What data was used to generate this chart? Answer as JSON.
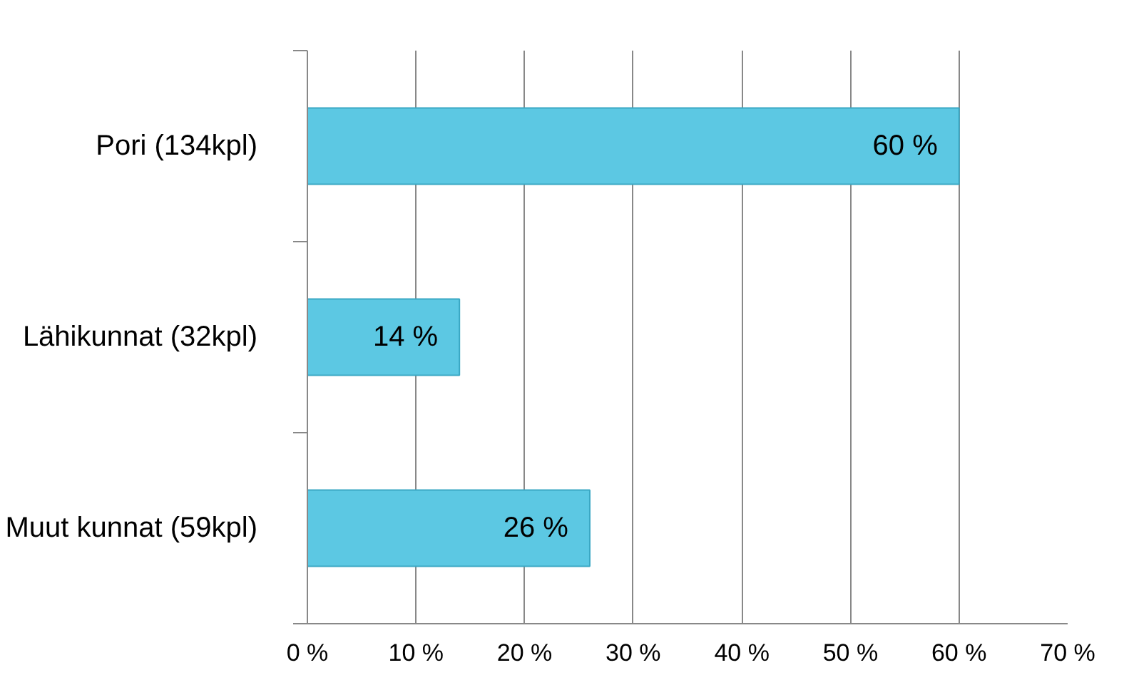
{
  "chart_data": {
    "type": "bar",
    "orientation": "horizontal",
    "categories": [
      "Pori (134kpl)",
      "Lähikunnat (32kpl)",
      "Muut kunnat (59kpl)"
    ],
    "values": [
      60,
      14,
      26
    ],
    "value_labels": [
      "60 %",
      "14 %",
      "26 %"
    ],
    "color": "#5cc8e3",
    "xlim": [
      0,
      70
    ],
    "xticks": [
      {
        "value": 0,
        "label": "0 %"
      },
      {
        "value": 10,
        "label": "10 %"
      },
      {
        "value": 20,
        "label": "20 %"
      },
      {
        "value": 30,
        "label": "30 %"
      },
      {
        "value": 40,
        "label": "40 %"
      },
      {
        "value": 50,
        "label": "50 %"
      },
      {
        "value": 60,
        "label": "60 %"
      },
      {
        "value": 70,
        "label": "70 %"
      }
    ],
    "grid": "x"
  }
}
